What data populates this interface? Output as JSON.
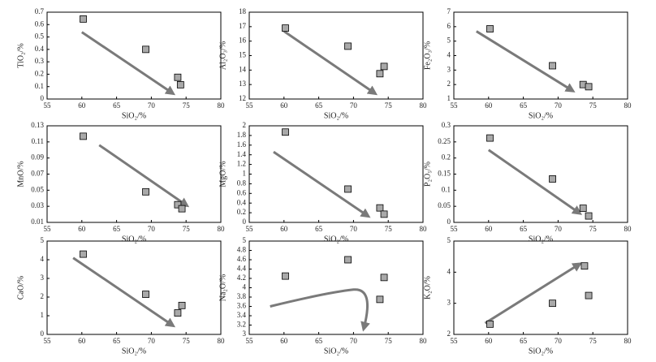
{
  "chart_data": [
    {
      "type": "scatter",
      "x_label": "SiO₂/%",
      "y_label": "TiO₂/%",
      "x": [
        60.2,
        69.2,
        73.8,
        74.2
      ],
      "y": [
        0.645,
        0.4,
        0.175,
        0.115
      ],
      "xlim": [
        55,
        80
      ],
      "ylim": [
        0,
        0.7
      ],
      "xticks": [
        55,
        60,
        65,
        70,
        75,
        80
      ],
      "yticks": [
        0,
        0.1,
        0.2,
        0.3,
        0.4,
        0.5,
        0.6,
        0.7
      ],
      "color": "#a9a9a9"
    },
    {
      "type": "scatter",
      "x_label": "SiO₂/%",
      "y_label": "Al₂O₃/%",
      "x": [
        60.2,
        69.2,
        73.8,
        74.4
      ],
      "y": [
        16.9,
        15.65,
        13.75,
        14.25
      ],
      "xlim": [
        55,
        80
      ],
      "ylim": [
        12,
        18
      ],
      "xticks": [
        55,
        60,
        65,
        70,
        75,
        80
      ],
      "yticks": [
        12,
        13,
        14,
        15,
        16,
        17,
        18
      ],
      "color": "#a9a9a9"
    },
    {
      "type": "scatter",
      "x_label": "SiO₂/%",
      "y_label": "Fe₂O₃/%",
      "x": [
        60.2,
        69.2,
        73.6,
        74.4
      ],
      "y": [
        5.85,
        3.3,
        2.0,
        1.85
      ],
      "xlim": [
        55,
        80
      ],
      "ylim": [
        1,
        7
      ],
      "xticks": [
        55,
        60,
        65,
        70,
        75,
        80
      ],
      "yticks": [
        1,
        2,
        3,
        4,
        5,
        6,
        7
      ],
      "color": "#a9a9a9"
    },
    {
      "type": "scatter",
      "x_label": "SiO₂/%",
      "y_label": "MnO/%",
      "x": [
        60.2,
        69.2,
        73.8,
        74.4
      ],
      "y": [
        0.117,
        0.048,
        0.032,
        0.027
      ],
      "xlim": [
        55,
        80
      ],
      "ylim": [
        0.01,
        0.13
      ],
      "xticks": [
        55,
        60,
        65,
        70,
        75,
        80
      ],
      "yticks": [
        0.01,
        0.03,
        0.05,
        0.07,
        0.09,
        0.11,
        0.13
      ],
      "color": "#a9a9a9"
    },
    {
      "type": "scatter",
      "x_label": "SiO₂/%",
      "y_label": "MgO/%",
      "x": [
        60.2,
        69.2,
        73.8,
        74.4
      ],
      "y": [
        1.87,
        0.69,
        0.3,
        0.17
      ],
      "xlim": [
        55,
        80
      ],
      "ylim": [
        0,
        2
      ],
      "xticks": [
        55,
        60,
        65,
        70,
        75,
        80
      ],
      "yticks": [
        0,
        0.2,
        0.4,
        0.6,
        0.8,
        1,
        1.2,
        1.4,
        1.6,
        1.8,
        2
      ],
      "color": "#a9a9a9"
    },
    {
      "type": "scatter",
      "x_label": "SiO₂/%",
      "y_label": "P₂O₅/%",
      "x": [
        60.2,
        69.2,
        73.6,
        74.4
      ],
      "y": [
        0.262,
        0.135,
        0.044,
        0.02
      ],
      "xlim": [
        55,
        80
      ],
      "ylim": [
        0,
        0.3
      ],
      "xticks": [
        55,
        60,
        65,
        70,
        75,
        80
      ],
      "yticks": [
        0,
        0.05,
        0.1,
        0.15,
        0.2,
        0.25,
        0.3
      ],
      "color": "#a9a9a9"
    },
    {
      "type": "scatter",
      "x_label": "SiO₂/%",
      "y_label": "CaO/%",
      "x": [
        60.2,
        69.2,
        73.8,
        74.4
      ],
      "y": [
        4.3,
        2.15,
        1.15,
        1.55
      ],
      "xlim": [
        55,
        80
      ],
      "ylim": [
        0,
        5
      ],
      "xticks": [
        55,
        60,
        65,
        70,
        75,
        80
      ],
      "yticks": [
        0,
        1,
        2,
        3,
        4,
        5
      ],
      "color": "#a9a9a9"
    },
    {
      "type": "scatter",
      "x_label": "SiO₂/%",
      "y_label": "Na₂O/%",
      "x": [
        60.2,
        69.2,
        73.8,
        74.4
      ],
      "y": [
        4.25,
        4.6,
        3.75,
        4.22
      ],
      "xlim": [
        55,
        80
      ],
      "ylim": [
        3,
        5
      ],
      "xticks": [
        55,
        60,
        65,
        70,
        75,
        80
      ],
      "yticks": [
        3,
        3.2,
        3.4,
        3.6,
        3.8,
        4,
        4.2,
        4.4,
        4.6,
        4.8,
        5
      ],
      "color": "#a9a9a9"
    },
    {
      "type": "scatter",
      "x_label": "SiO₂/%",
      "y_label": "K₂O/%",
      "x": [
        60.2,
        69.2,
        73.8,
        74.4
      ],
      "y": [
        2.33,
        3.0,
        4.2,
        3.25
      ],
      "xlim": [
        55,
        80
      ],
      "ylim": [
        2,
        5
      ],
      "xticks": [
        55,
        60,
        65,
        70,
        75,
        80
      ],
      "yticks": [
        2,
        3,
        4,
        5
      ],
      "color": "#a9a9a9"
    }
  ]
}
